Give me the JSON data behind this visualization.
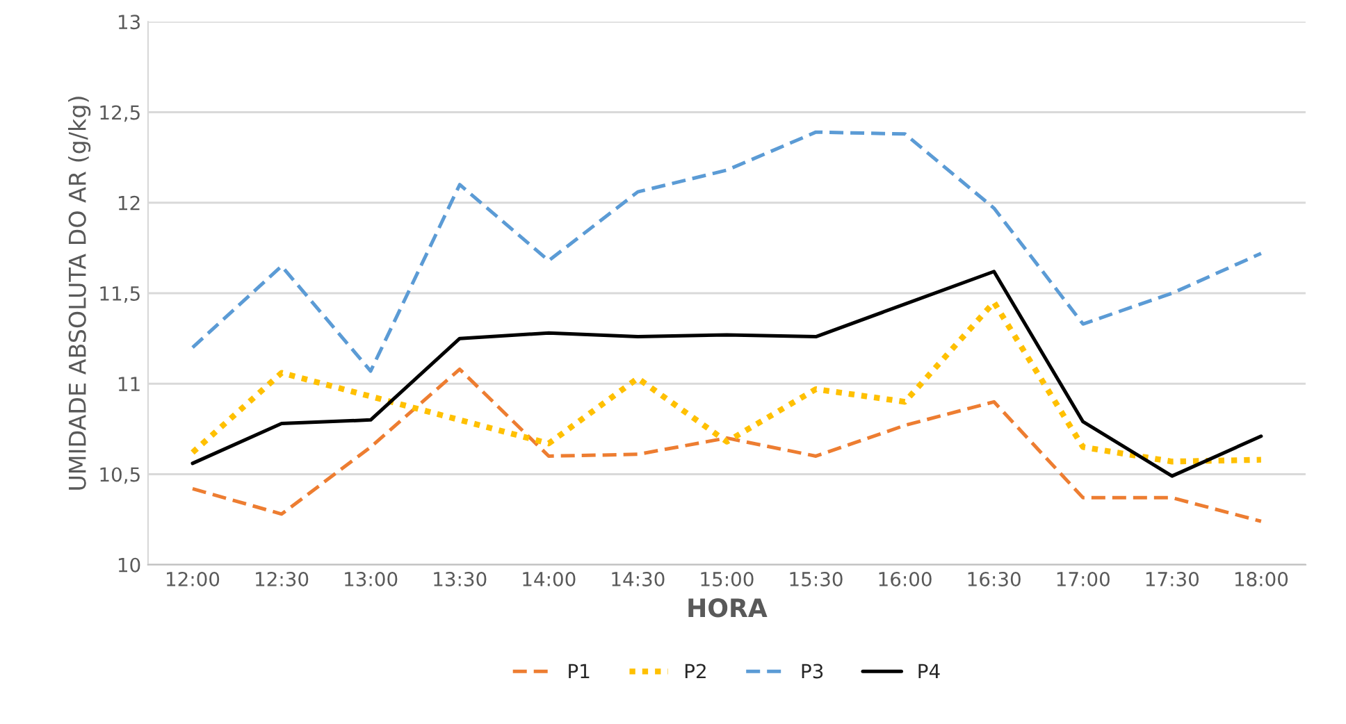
{
  "chart_data": {
    "type": "line",
    "xlabel": "HORA",
    "ylabel": "UMIDADE ABSOLUTA DO AR (g/kg)",
    "categories": [
      "12:00",
      "12:30",
      "13:00",
      "13:30",
      "14:00",
      "14:30",
      "15:00",
      "15:30",
      "16:00",
      "16:30",
      "17:00",
      "17:30",
      "18:00"
    ],
    "series": [
      {
        "name": "P1",
        "color": "#ed7d31",
        "line_style": "dashed",
        "values": [
          10.42,
          10.28,
          10.65,
          11.08,
          10.6,
          10.61,
          10.7,
          10.6,
          10.77,
          10.9,
          10.37,
          10.37,
          10.24
        ]
      },
      {
        "name": "P2",
        "color": "#ffc000",
        "line_style": "dotted",
        "values": [
          10.62,
          11.06,
          10.93,
          10.8,
          10.67,
          11.03,
          10.68,
          10.97,
          10.9,
          11.45,
          10.65,
          10.57,
          10.58
        ]
      },
      {
        "name": "P3",
        "color": "#5b9bd5",
        "line_style": "dashed",
        "values": [
          11.2,
          11.65,
          11.07,
          12.1,
          11.68,
          12.06,
          12.18,
          12.39,
          12.38,
          11.97,
          11.33,
          11.5,
          11.72
        ]
      },
      {
        "name": "P4",
        "color": "#000000",
        "line_style": "solid",
        "values": [
          10.56,
          10.78,
          10.8,
          11.25,
          11.28,
          11.26,
          11.27,
          11.26,
          11.44,
          11.62,
          10.79,
          10.49,
          10.71
        ]
      }
    ],
    "ylim": [
      10,
      13
    ],
    "yticks": [
      10,
      {
        "value": 10.5,
        "label": "10,5"
      },
      11,
      {
        "value": 11.5,
        "label": "11,5"
      },
      12,
      {
        "value": 12.5,
        "label": "12,5"
      },
      13
    ],
    "grid": "y",
    "legend": "bottom",
    "marker": "none"
  }
}
